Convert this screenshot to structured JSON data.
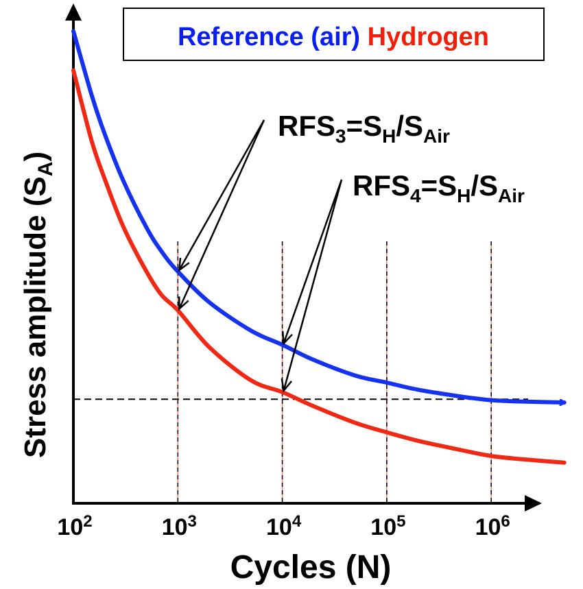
{
  "chart_data": {
    "type": "line",
    "title": "",
    "xlabel": "Cycles (N)",
    "ylabel_main": "Stress amplitude (S",
    "ylabel_sub": "A",
    "ylabel_close": ")",
    "x_scale": "log",
    "xlim": [
      100,
      10000000
    ],
    "ylim": [
      0,
      1
    ],
    "ticks": [
      {
        "value": 100,
        "base": "10",
        "exp": "2"
      },
      {
        "value": 1000,
        "base": "10",
        "exp": "3"
      },
      {
        "value": 10000,
        "base": "10",
        "exp": "4"
      },
      {
        "value": 100000,
        "base": "10",
        "exp": "5"
      },
      {
        "value": 1000000,
        "base": "10",
        "exp": "6"
      }
    ],
    "vertical_gridlines": [
      1000,
      10000,
      100000,
      1000000
    ],
    "horizontal_reference_y": 0.22,
    "legend": {
      "placement": "top",
      "entries": [
        {
          "label": "Reference (air)",
          "color": "#0a1ef0"
        },
        {
          "label": "Hydrogen",
          "color": "#f01e0a"
        }
      ]
    },
    "series": [
      {
        "name": "Reference (air)",
        "color": "#1432f0",
        "x": [
          100,
          150,
          200,
          300,
          500,
          700,
          1000,
          2000,
          5000,
          10000,
          20000,
          50000,
          100000,
          200000,
          500000,
          1000000,
          2000000,
          5000000
        ],
        "y": [
          0.998,
          0.862,
          0.78,
          0.682,
          0.583,
          0.532,
          0.49,
          0.425,
          0.365,
          0.335,
          0.303,
          0.27,
          0.255,
          0.24,
          0.226,
          0.218,
          0.215,
          0.213
        ]
      },
      {
        "name": "Hydrogen",
        "color": "#f02814",
        "x": [
          100,
          150,
          200,
          300,
          500,
          700,
          1000,
          2000,
          5000,
          10000,
          20000,
          50000,
          100000,
          200000,
          500000,
          1000000,
          2000000,
          5000000
        ],
        "y": [
          0.915,
          0.765,
          0.685,
          0.585,
          0.49,
          0.44,
          0.408,
          0.33,
          0.26,
          0.235,
          0.205,
          0.17,
          0.15,
          0.132,
          0.113,
          0.1,
          0.093,
          0.086
        ]
      }
    ],
    "annotations": [
      {
        "main": "RFS",
        "num": "3",
        "eq": "=S",
        "h": "H",
        "slash": "/S",
        "air": "Air",
        "points_at_x": 1000
      },
      {
        "main": "RFS",
        "num": "4",
        "eq": "=S",
        "h": "H",
        "slash": "/S",
        "air": "Air",
        "points_at_x": 10000
      }
    ]
  }
}
